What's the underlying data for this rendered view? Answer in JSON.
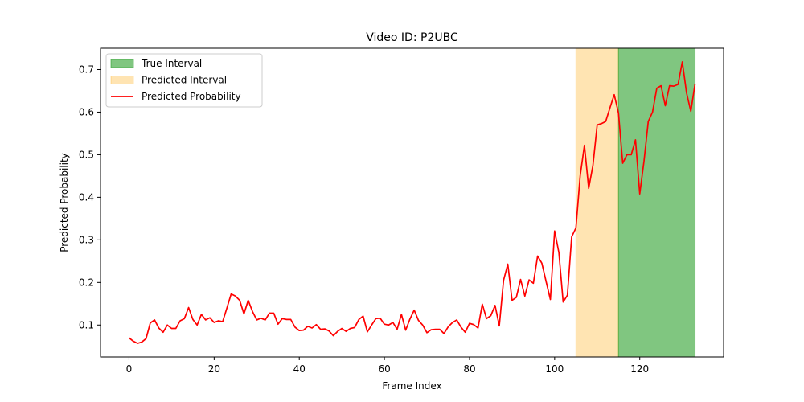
{
  "chart_data": {
    "type": "line",
    "title": "Video ID: P2UBC",
    "xlabel": "Frame Index",
    "ylabel": "Predicted Probability",
    "xlim": [
      -6.7,
      139.7
    ],
    "ylim": [
      0.025,
      0.75
    ],
    "xticks": [
      0,
      20,
      40,
      60,
      80,
      100,
      120
    ],
    "yticks": [
      0.1,
      0.2,
      0.3,
      0.4,
      0.5,
      0.6,
      0.7
    ],
    "grid": false,
    "legend_position": "top-left",
    "intervals": [
      {
        "name": "True Interval",
        "start": 115,
        "end": 133,
        "color": "#2ca02c",
        "opacity": 0.6
      },
      {
        "name": "Predicted Interval",
        "start": 105,
        "end": 115,
        "color": "#ffa500",
        "opacity": 0.3
      }
    ],
    "series": [
      {
        "name": "Predicted Probability",
        "color": "#ff0000",
        "x": [
          0,
          1,
          2,
          3,
          4,
          5,
          6,
          7,
          8,
          9,
          10,
          11,
          12,
          13,
          14,
          15,
          16,
          17,
          18,
          19,
          20,
          21,
          22,
          23,
          24,
          25,
          26,
          27,
          28,
          29,
          30,
          31,
          32,
          33,
          34,
          35,
          36,
          37,
          38,
          39,
          40,
          41,
          42,
          43,
          44,
          45,
          46,
          47,
          48,
          49,
          50,
          51,
          52,
          53,
          54,
          55,
          56,
          57,
          58,
          59,
          60,
          61,
          62,
          63,
          64,
          65,
          66,
          67,
          68,
          69,
          70,
          71,
          72,
          73,
          74,
          75,
          76,
          77,
          78,
          79,
          80,
          81,
          82,
          83,
          84,
          85,
          86,
          87,
          88,
          89,
          90,
          91,
          92,
          93,
          94,
          95,
          96,
          97,
          98,
          99,
          100,
          101,
          102,
          103,
          104,
          105,
          106,
          107,
          108,
          109,
          110,
          111,
          112,
          113,
          114,
          115,
          116,
          117,
          118,
          119,
          120,
          121,
          122,
          123,
          124,
          125,
          126,
          127,
          128,
          129,
          130,
          131,
          132,
          133
        ],
        "values": [
          0.07,
          0.062,
          0.057,
          0.06,
          0.068,
          0.105,
          0.112,
          0.093,
          0.083,
          0.1,
          0.092,
          0.092,
          0.11,
          0.115,
          0.141,
          0.113,
          0.1,
          0.125,
          0.112,
          0.117,
          0.106,
          0.11,
          0.108,
          0.14,
          0.173,
          0.168,
          0.158,
          0.126,
          0.158,
          0.132,
          0.112,
          0.116,
          0.112,
          0.128,
          0.128,
          0.102,
          0.115,
          0.113,
          0.113,
          0.095,
          0.087,
          0.088,
          0.097,
          0.093,
          0.101,
          0.09,
          0.091,
          0.086,
          0.075,
          0.085,
          0.092,
          0.085,
          0.092,
          0.094,
          0.113,
          0.121,
          0.084,
          0.1,
          0.115,
          0.116,
          0.102,
          0.1,
          0.106,
          0.09,
          0.125,
          0.088,
          0.114,
          0.135,
          0.111,
          0.1,
          0.082,
          0.089,
          0.09,
          0.09,
          0.08,
          0.096,
          0.106,
          0.112,
          0.095,
          0.083,
          0.104,
          0.101,
          0.093,
          0.149,
          0.115,
          0.122,
          0.146,
          0.098,
          0.205,
          0.243,
          0.158,
          0.165,
          0.207,
          0.168,
          0.206,
          0.198,
          0.262,
          0.245,
          0.202,
          0.16,
          0.321,
          0.27,
          0.154,
          0.17,
          0.307,
          0.328,
          0.45,
          0.522,
          0.421,
          0.475,
          0.57,
          0.573,
          0.578,
          0.61,
          0.641,
          0.598,
          0.48,
          0.5,
          0.5,
          0.535,
          0.408,
          0.485,
          0.578,
          0.6,
          0.656,
          0.662,
          0.615,
          0.662,
          0.661,
          0.665,
          0.718,
          0.645,
          0.602,
          0.667
        ]
      }
    ]
  }
}
